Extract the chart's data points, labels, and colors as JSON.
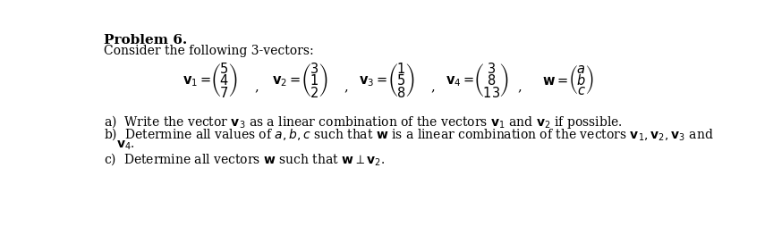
{
  "bg_color": "#ffffff",
  "text_color": "#000000",
  "title": "Problem 6.",
  "line1": "Consider the following 3-vectors:",
  "part_a": "a)  Write the vector $\\mathbf{v}_3$ as a linear combination of the vectors $\\mathbf{v}_1$ and $\\mathbf{v}_2$ if possible.",
  "part_b1": "b)  Determine all values of $a,b,c$ such that $\\mathbf{w}$ is a linear combination of the vectors $\\mathbf{v}_1, \\mathbf{v}_2, \\mathbf{v}_3$ and",
  "part_b2": "     $\\mathbf{v}_4$.",
  "part_c": "c)  Determine all vectors $\\mathbf{w}$ such that $\\mathbf{w} \\perp \\mathbf{v}_2$.",
  "fs_title": 11,
  "fs_body": 10,
  "fs_vec": 10.5,
  "fs_small": 9.5
}
